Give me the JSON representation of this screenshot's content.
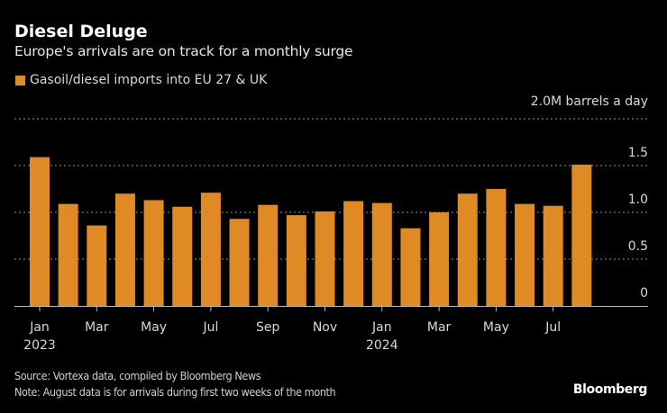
{
  "header": {
    "title": "Diesel Deluge",
    "subtitle": "Europe's arrivals are on track for a monthly surge"
  },
  "legend": [
    {
      "label": "Gasoil/diesel imports into EU 27 & UK",
      "color": "#e08a26"
    }
  ],
  "footer": {
    "source": "Source: Vortexa data, compiled by Bloomberg News",
    "note": "Note: August data is for arrivals during first two weeks of the month",
    "brand": "Bloomberg"
  },
  "colors": {
    "background": "#000000",
    "bar": "#e08a26",
    "grid": "#777777",
    "axis": "#bbbbbb",
    "text": "#d8d8d8"
  },
  "chart_data": {
    "type": "bar",
    "title": "Diesel Deluge",
    "subtitle": "Europe's arrivals are on track for a monthly surge",
    "xlabel": "",
    "ylabel": "M barrels a day",
    "unit_label": "2.0M barrels a day",
    "ylim": [
      0,
      2.0
    ],
    "yticks": [
      {
        "value": 0,
        "label": "0"
      },
      {
        "value": 0.5,
        "label": "0.5"
      },
      {
        "value": 1.0,
        "label": "1.0"
      },
      {
        "value": 1.5,
        "label": "1.5"
      },
      {
        "value": 2.0,
        "label": "2.0M barrels a day"
      }
    ],
    "grid": true,
    "legend_position": "top-left",
    "categories": [
      "Jan 2023",
      "Feb 2023",
      "Mar 2023",
      "Apr 2023",
      "May 2023",
      "Jun 2023",
      "Jul 2023",
      "Aug 2023",
      "Sep 2023",
      "Oct 2023",
      "Nov 2023",
      "Dec 2023",
      "Jan 2024",
      "Feb 2024",
      "Mar 2024",
      "Apr 2024",
      "May 2024",
      "Jun 2024",
      "Jul 2024",
      "Aug 2024"
    ],
    "series": [
      {
        "name": "Gasoil/diesel imports into EU 27 & UK",
        "values": [
          1.59,
          1.09,
          0.86,
          1.2,
          1.13,
          1.06,
          1.21,
          0.93,
          1.08,
          0.97,
          1.01,
          1.12,
          1.1,
          0.83,
          1.0,
          1.2,
          1.25,
          1.09,
          1.07,
          1.51
        ]
      }
    ],
    "xticks": [
      {
        "index": 0,
        "label": "Jan",
        "sublabel": "2023"
      },
      {
        "index": 2,
        "label": "Mar",
        "sublabel": ""
      },
      {
        "index": 4,
        "label": "May",
        "sublabel": ""
      },
      {
        "index": 6,
        "label": "Jul",
        "sublabel": ""
      },
      {
        "index": 8,
        "label": "Sep",
        "sublabel": ""
      },
      {
        "index": 10,
        "label": "Nov",
        "sublabel": ""
      },
      {
        "index": 12,
        "label": "Jan",
        "sublabel": "2024"
      },
      {
        "index": 14,
        "label": "Mar",
        "sublabel": ""
      },
      {
        "index": 16,
        "label": "May",
        "sublabel": ""
      },
      {
        "index": 18,
        "label": "Jul",
        "sublabel": ""
      }
    ]
  }
}
